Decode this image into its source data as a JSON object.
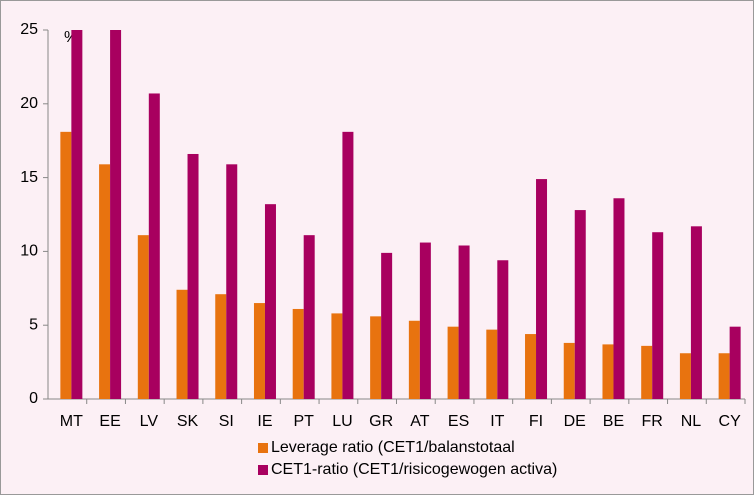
{
  "chart_data": {
    "type": "bar",
    "unit_label": "%",
    "categories": [
      "MT",
      "EE",
      "LV",
      "SK",
      "SI",
      "IE",
      "PT",
      "LU",
      "GR",
      "AT",
      "ES",
      "IT",
      "FI",
      "DE",
      "BE",
      "FR",
      "NL",
      "CY"
    ],
    "series": [
      {
        "name": "Leverage ratio (CET1/balanstotaal",
        "color": "#e8730f",
        "values": [
          18.1,
          15.9,
          11.1,
          7.4,
          7.1,
          6.5,
          6.1,
          5.8,
          5.6,
          5.3,
          4.9,
          4.7,
          4.4,
          3.8,
          3.7,
          3.6,
          3.1,
          3.1
        ]
      },
      {
        "name": "CET1-ratio (CET1/risicogewogen activa)",
        "color": "#a8005f",
        "values": [
          25,
          25,
          20.7,
          16.6,
          15.9,
          13.2,
          11.1,
          18.1,
          9.9,
          10.6,
          10.4,
          9.4,
          14.9,
          12.8,
          13.6,
          11.3,
          11.7,
          4.9
        ]
      }
    ],
    "ylim": [
      0,
      25
    ],
    "yticks": [
      0,
      5,
      10,
      15,
      20,
      25
    ],
    "grid": false,
    "legend": "bottom"
  }
}
